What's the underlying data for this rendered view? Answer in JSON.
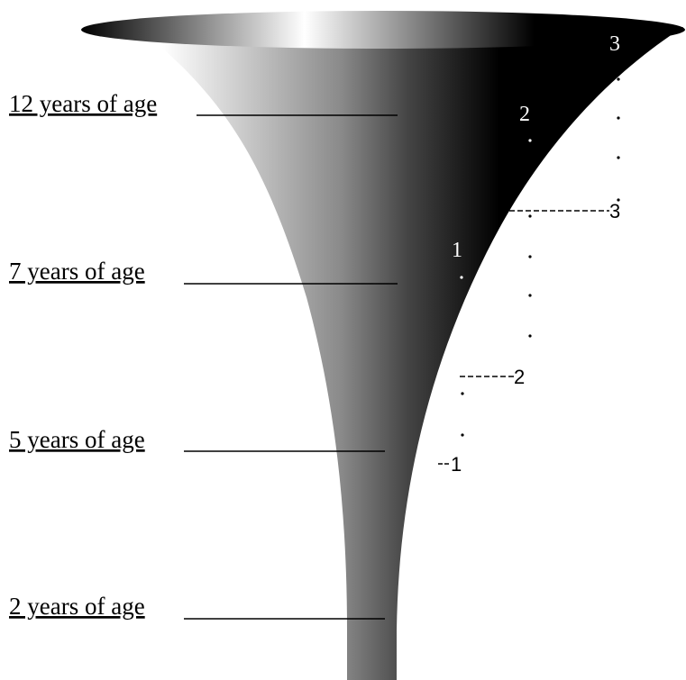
{
  "age_labels": [
    "12 years of age",
    "7 years of age",
    "5 years of age",
    "2 years of age"
  ],
  "inner_markers": [
    "3",
    "2",
    "1"
  ],
  "outer_markers": [
    "3",
    "2",
    "1"
  ]
}
